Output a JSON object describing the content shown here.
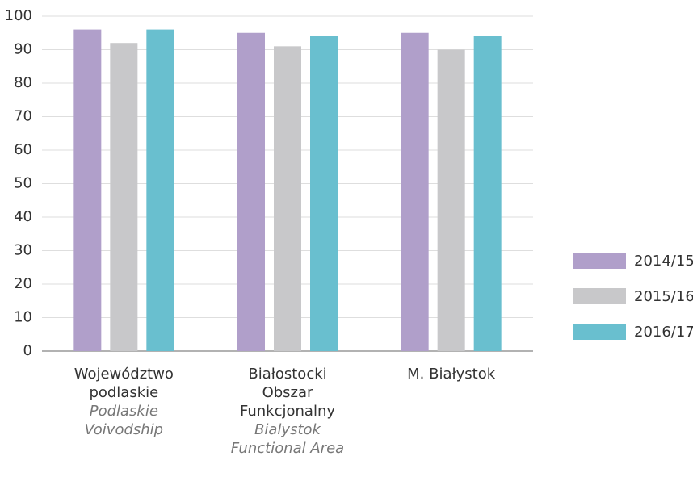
{
  "chart_data": {
    "type": "bar",
    "categories": [
      "Województwo podlaskie",
      "Białostocki Obszar Funkcjonalny",
      "M. Białystok"
    ],
    "category_translations": [
      "Podlaskie Voivodship",
      "Bialystok Functional Area",
      null
    ],
    "series": [
      {
        "name": "2014/15",
        "color": "#b09fca",
        "values": [
          96,
          95,
          95
        ]
      },
      {
        "name": "2015/16",
        "color": "#c8c8ca",
        "values": [
          92,
          91,
          90
        ]
      },
      {
        "name": "2016/17",
        "color": "#69bfcf",
        "values": [
          96,
          94,
          94
        ]
      }
    ],
    "ylim": [
      0,
      100
    ],
    "yticks": [
      0,
      10,
      20,
      30,
      40,
      50,
      60,
      70,
      80,
      90,
      100
    ],
    "grid": true,
    "legend": "right"
  }
}
